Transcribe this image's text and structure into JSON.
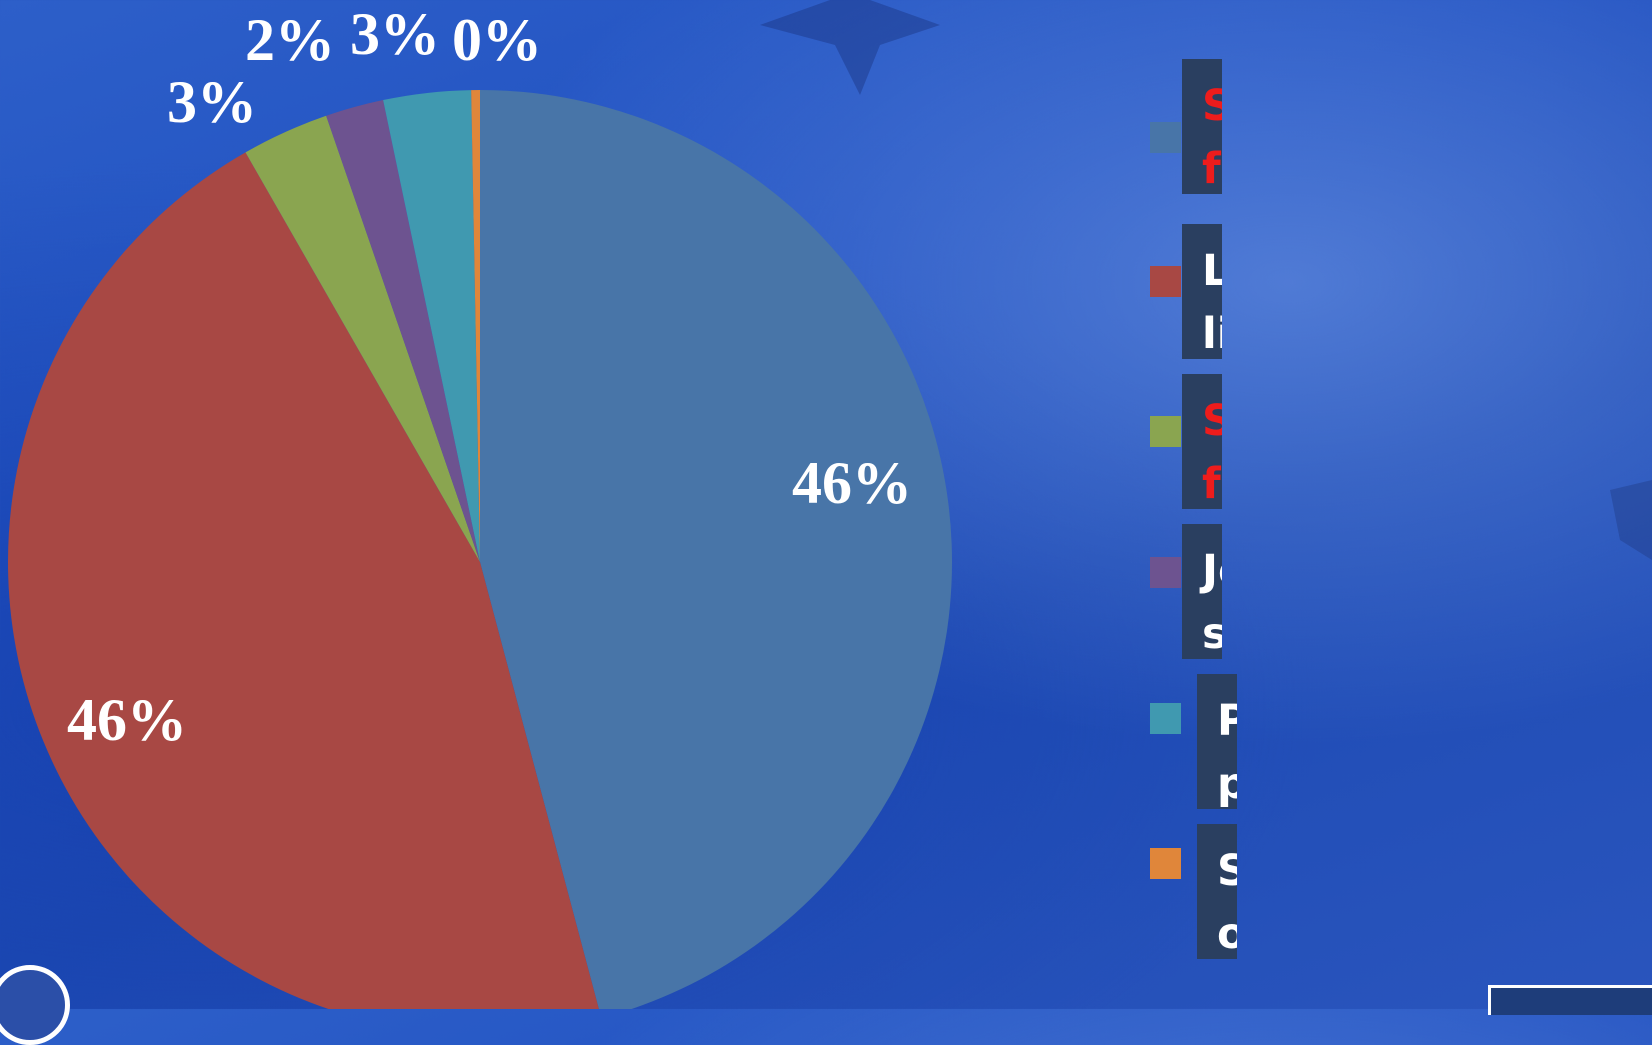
{
  "chart_data": {
    "type": "pie",
    "slices": [
      {
        "label": "Small family run farming companies",
        "value": 46,
        "display": "46%",
        "color": "#4875a8"
      },
      {
        "label": "Limited liability farming companies",
        "value": 46,
        "display": "46%",
        "color": "#a84844"
      },
      {
        "label": "Small farmers associations",
        "value": 3,
        "display": "3%",
        "color": "#8aa550"
      },
      {
        "label": "Joint stock companies",
        "value": 2,
        "display": "2%",
        "color": "#6d5390"
      },
      {
        "label": "Public private partnerships",
        "value": 3,
        "display": "3%",
        "color": "#4099b0"
      },
      {
        "label": "State owned companies",
        "value": 0,
        "display": "0%",
        "color": "#e0863a"
      }
    ],
    "legend_position": "right"
  },
  "legend": [
    {
      "text": "Small family run\nfarming companies",
      "text_color": "#ee1c1c",
      "swatch": "#4875a8"
    },
    {
      "text": "Limited liability\nfarming companies",
      "text_color": "#ffffff",
      "swatch": "#a84844"
    },
    {
      "text": "Small farmers\nassociations",
      "text_color": "#ee1c1c",
      "swatch": "#8aa550"
    },
    {
      "text": "Joint stock\ncompanies",
      "text_color": "#ffffff",
      "swatch": "#6d5390"
    },
    {
      "text": "Public private\npartnerships",
      "text_color": "#ffffff",
      "swatch": "#4099b0"
    },
    {
      "text": "State owned\ncompanies",
      "text_color": "#ffffff",
      "swatch": "#e0863a"
    }
  ]
}
